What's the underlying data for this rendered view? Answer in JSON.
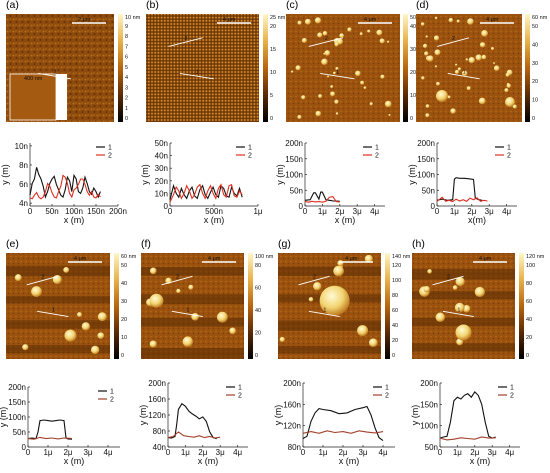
{
  "panels": [
    {
      "letter": "(a)",
      "scale_text": "2 μm",
      "colorbar": {
        "unit": "10 nm",
        "ticks": [
          "9",
          "8",
          "7",
          "6",
          "5",
          "4",
          "3",
          "2",
          "1",
          "0"
        ]
      },
      "inset_text": "400 nm",
      "style": "texture"
    },
    {
      "letter": "(b)",
      "scale_text": "4 μm",
      "colorbar": {
        "unit": "25 nm",
        "ticks": [
          "20",
          "15",
          "10",
          "5",
          "0"
        ]
      },
      "style": "dots"
    },
    {
      "letter": "(c)",
      "scale_text": "4 μm",
      "colorbar": {
        "unit": "50 nm",
        "ticks": [
          "40",
          "30",
          "20",
          "10",
          "0"
        ]
      },
      "style": "islands"
    },
    {
      "letter": "(d)",
      "scale_text": "4 μm",
      "colorbar": {
        "unit": "60 nm",
        "ticks": [
          "50",
          "40",
          "30",
          "20",
          "10",
          "0"
        ]
      },
      "style": "islands"
    },
    {
      "letter": "(e)",
      "scale_text": "4 μm",
      "colorbar": {
        "unit": "60 nm",
        "ticks": [
          "50",
          "40",
          "30",
          "20",
          "10",
          "0"
        ]
      },
      "style": "stripes"
    },
    {
      "letter": "(f)",
      "scale_text": "4 μm",
      "colorbar": {
        "unit": "100 nm",
        "ticks": [
          "80",
          "60",
          "40",
          "20",
          "0"
        ]
      },
      "style": "stripes"
    },
    {
      "letter": "(g)",
      "scale_text": "4 μm",
      "colorbar": {
        "unit": "140 nm",
        "ticks": [
          "120",
          "100",
          "80",
          "60",
          "40",
          "20",
          "0"
        ]
      },
      "style": "stripes"
    },
    {
      "letter": "(h)",
      "scale_text": "4 μm",
      "colorbar": {
        "unit": "120 nm",
        "ticks": [
          "100",
          "80",
          "60",
          "40",
          "20",
          "0"
        ]
      },
      "style": "stripes"
    }
  ],
  "colors": {
    "series1": "#111111",
    "series2": "#e03020",
    "series2_dark": "#a2402a"
  },
  "chart_data": [
    {
      "panel": "a",
      "type": "line",
      "xlabel": "x (m)",
      "ylabel": "y (m)",
      "xticks": [
        "0",
        "50n",
        "100n",
        "150n",
        "200n"
      ],
      "xlim": [
        0,
        200
      ],
      "yticks": [
        "4n",
        "6n",
        "8n",
        "10n"
      ],
      "ylim": [
        3,
        10
      ],
      "series": [
        {
          "name": "1",
          "x": [
            0,
            5,
            10,
            15,
            20,
            25,
            30,
            35,
            40,
            45,
            50,
            55,
            60,
            65,
            70,
            75,
            80,
            85,
            90,
            95,
            100,
            105,
            110,
            115,
            120,
            125,
            130,
            135,
            140,
            145,
            150,
            155,
            160
          ],
          "y": [
            4.2,
            5.5,
            6.0,
            7.3,
            6.5,
            6.0,
            5.2,
            4.0,
            4.6,
            5.5,
            6.0,
            6.3,
            5.4,
            4.8,
            4.2,
            4.0,
            4.8,
            6.2,
            5.8,
            4.6,
            6.4,
            6.0,
            4.6,
            4.4,
            5.0,
            6.2,
            5.5,
            4.6,
            4.3,
            5.0,
            4.6,
            4.0,
            4.6
          ]
        },
        {
          "name": "2",
          "x": [
            0,
            5,
            10,
            15,
            20,
            25,
            30,
            35,
            40,
            45,
            50,
            55,
            60,
            65,
            70,
            75,
            80,
            85,
            90,
            95,
            100,
            105,
            110,
            115,
            120,
            125,
            130,
            135,
            140,
            145,
            150,
            155,
            160
          ],
          "y": [
            3.9,
            3.8,
            4.2,
            4.5,
            4.0,
            3.8,
            4.0,
            4.6,
            5.5,
            5.2,
            4.5,
            4.0,
            3.9,
            4.6,
            5.2,
            6.4,
            6.2,
            5.5,
            4.4,
            4.0,
            4.8,
            5.0,
            5.4,
            6.0,
            6.0,
            5.4,
            4.6,
            4.2,
            4.6,
            4.0,
            3.9,
            4.3,
            4.0
          ]
        }
      ]
    },
    {
      "panel": "b",
      "type": "line",
      "xlabel": "x (m)",
      "ylabel": "y (m)",
      "xticks": [
        "0",
        "500n",
        "1μ"
      ],
      "xlim": [
        0,
        1000
      ],
      "yticks": [
        "0",
        "10n",
        "20n",
        "30n",
        "40n",
        "50n"
      ],
      "ylim": [
        0,
        50
      ],
      "series": [
        {
          "name": "1",
          "x": [
            0,
            40,
            70,
            100,
            130,
            160,
            190,
            220,
            250,
            280,
            310,
            340,
            370,
            400,
            430,
            460,
            490,
            520,
            550,
            580,
            610,
            640,
            670,
            700,
            730,
            760,
            790,
            820
          ],
          "y": [
            5,
            16,
            10,
            7,
            14,
            9,
            6,
            12,
            15,
            8,
            6,
            13,
            16,
            9,
            6,
            11,
            15,
            9,
            7,
            16,
            14,
            8,
            7,
            15,
            10,
            8,
            14,
            7
          ]
        },
        {
          "name": "2",
          "x": [
            0,
            40,
            70,
            100,
            130,
            160,
            190,
            220,
            250,
            280,
            310,
            340,
            370,
            400,
            430,
            460,
            490,
            520,
            550,
            580,
            610,
            640,
            670,
            700,
            730,
            760,
            790,
            820
          ],
          "y": [
            3,
            9,
            15,
            12,
            6,
            10,
            16,
            12,
            6,
            9,
            15,
            17,
            10,
            6,
            12,
            16,
            10,
            6,
            14,
            17,
            9,
            7,
            16,
            17,
            8,
            7,
            12,
            9
          ]
        }
      ]
    },
    {
      "panel": "c",
      "type": "line",
      "xlabel": "x (m)",
      "ylabel": "y (m)",
      "xticks": [
        "0",
        "1μ",
        "2μ",
        "3μ",
        "4μ"
      ],
      "xlim": [
        0,
        4.6
      ],
      "yticks": [
        "0",
        "50n",
        "100n",
        "150n",
        "200n"
      ],
      "ylim": [
        0,
        200
      ],
      "series": [
        {
          "name": "1",
          "x": [
            0,
            0.3,
            0.5,
            0.6,
            0.8,
            0.9,
            1.0,
            1.2,
            1.4,
            1.5,
            1.6,
            1.8,
            2.0
          ],
          "y": [
            18,
            20,
            42,
            42,
            22,
            44,
            44,
            20,
            18,
            17,
            16,
            16,
            15
          ]
        },
        {
          "name": "2",
          "x": [
            0,
            0.2,
            0.4,
            0.6,
            0.8,
            1.0,
            1.2,
            1.4,
            1.6,
            1.8,
            2.0
          ],
          "y": [
            14,
            12,
            15,
            13,
            14,
            12,
            15,
            28,
            30,
            14,
            13
          ]
        }
      ]
    },
    {
      "panel": "d",
      "type": "line",
      "xlabel": "x(m)",
      "ylabel": "y (m)",
      "xticks": [
        "0",
        "1μ",
        "2μ",
        "3μ",
        "4μ"
      ],
      "xlim": [
        0,
        4.6
      ],
      "yticks": [
        "0",
        "50n",
        "100n",
        "150n",
        "200n"
      ],
      "ylim": [
        0,
        200
      ],
      "series": [
        {
          "name": "1",
          "x": [
            0,
            0.3,
            0.6,
            0.9,
            1.0,
            1.1,
            1.3,
            1.6,
            1.9,
            2.1,
            2.2,
            2.4,
            2.6
          ],
          "y": [
            18,
            22,
            18,
            20,
            85,
            90,
            88,
            88,
            86,
            84,
            25,
            20,
            18
          ]
        },
        {
          "name": "2",
          "x": [
            0,
            0.3,
            0.5,
            0.7,
            0.9,
            1.1,
            1.3,
            1.5,
            1.7,
            1.9,
            2.1,
            2.3,
            2.5,
            2.7,
            2.9
          ],
          "y": [
            15,
            28,
            15,
            18,
            14,
            22,
            16,
            20,
            15,
            25,
            20,
            26,
            15,
            18,
            16
          ]
        }
      ]
    },
    {
      "panel": "e",
      "type": "line",
      "xlabel": "x (m)",
      "ylabel": "y (m)",
      "xticks": [
        "0",
        "1μ",
        "2μ",
        "3μ",
        "4μ"
      ],
      "xlim": [
        0,
        4.6
      ],
      "yticks": [
        "0",
        "50n",
        "100n",
        "150n",
        "200n"
      ],
      "ylim": [
        0,
        200
      ],
      "series": [
        {
          "name": "1",
          "x": [
            0,
            0.2,
            0.4,
            0.5,
            0.6,
            0.8,
            1.0,
            1.2,
            1.4,
            1.6,
            1.8,
            1.9,
            2.0,
            2.2
          ],
          "y": [
            28,
            30,
            28,
            50,
            88,
            90,
            88,
            86,
            88,
            90,
            88,
            30,
            27,
            26
          ]
        },
        {
          "name": "2",
          "x": [
            0,
            0.3,
            0.6,
            0.9,
            1.2,
            1.5,
            1.8,
            2.1,
            2.2
          ],
          "y": [
            28,
            26,
            32,
            28,
            30,
            27,
            30,
            29,
            28
          ]
        }
      ]
    },
    {
      "panel": "f",
      "type": "line",
      "xlabel": "x (m)",
      "ylabel": "y (m)",
      "xticks": [
        "0",
        "1μ",
        "2μ",
        "3μ",
        "4μ"
      ],
      "xlim": [
        0,
        4.6
      ],
      "yticks": [
        "40n",
        "80n",
        "120n",
        "160n",
        "200n"
      ],
      "ylim": [
        30,
        200
      ],
      "series": [
        {
          "name": "1",
          "x": [
            0,
            0.2,
            0.4,
            0.5,
            0.6,
            0.8,
            1.0,
            1.2,
            1.4,
            1.6,
            1.8,
            2.0,
            2.2,
            2.4,
            2.6,
            2.8
          ],
          "y": [
            55,
            54,
            58,
            90,
            130,
            145,
            138,
            125,
            118,
            112,
            105,
            110,
            98,
            70,
            55,
            52
          ]
        },
        {
          "name": "2",
          "x": [
            0,
            0.3,
            0.6,
            0.9,
            1.2,
            1.5,
            1.8,
            2.1,
            2.4,
            2.7,
            3.0
          ],
          "y": [
            55,
            58,
            70,
            60,
            58,
            56,
            60,
            55,
            58,
            54,
            56
          ]
        }
      ]
    },
    {
      "panel": "g",
      "type": "line",
      "xlabel": "x (m)",
      "ylabel": "y (m)",
      "xticks": [
        "0",
        "1μ",
        "2μ",
        "3μ",
        "4μ"
      ],
      "xlim": [
        0,
        4.6
      ],
      "yticks": [
        "80n",
        "120n",
        "160n",
        "200n"
      ],
      "ylim": [
        50,
        200
      ],
      "series": [
        {
          "name": "1",
          "x": [
            0,
            0.2,
            0.4,
            0.6,
            0.8,
            1.0,
            1.4,
            1.8,
            2.2,
            2.6,
            3.0,
            3.2,
            3.4,
            3.6,
            3.8,
            4.0
          ],
          "y": [
            70,
            75,
            110,
            130,
            140,
            138,
            135,
            128,
            130,
            138,
            142,
            145,
            125,
            95,
            72,
            65
          ]
        },
        {
          "name": "2",
          "x": [
            0,
            0.4,
            0.8,
            1.2,
            1.6,
            2.0,
            2.4,
            2.8,
            3.2,
            3.6,
            4.0
          ],
          "y": [
            82,
            86,
            82,
            88,
            84,
            86,
            82,
            88,
            85,
            83,
            86
          ]
        }
      ]
    },
    {
      "panel": "h",
      "type": "line",
      "xlabel": "x (m)",
      "ylabel": "y (m)",
      "xticks": [
        "0",
        "1μ",
        "2μ",
        "3μ",
        "4μ"
      ],
      "xlim": [
        0,
        4.6
      ],
      "yticks": [
        "50n",
        "100n",
        "150n",
        "200n"
      ],
      "ylim": [
        30,
        210
      ],
      "series": [
        {
          "name": "1",
          "x": [
            0,
            0.2,
            0.4,
            0.6,
            0.8,
            1.0,
            1.2,
            1.4,
            1.6,
            1.8,
            2.0,
            2.2,
            2.4,
            2.6,
            2.8,
            3.0,
            3.2
          ],
          "y": [
            55,
            58,
            60,
            100,
            160,
            170,
            165,
            175,
            180,
            170,
            185,
            175,
            150,
            100,
            60,
            55,
            58
          ]
        },
        {
          "name": "2",
          "x": [
            0,
            0.4,
            0.8,
            1.2,
            1.6,
            2.0,
            2.4,
            2.8,
            3.2
          ],
          "y": [
            55,
            50,
            52,
            56,
            54,
            52,
            58,
            55,
            56
          ]
        }
      ]
    }
  ]
}
